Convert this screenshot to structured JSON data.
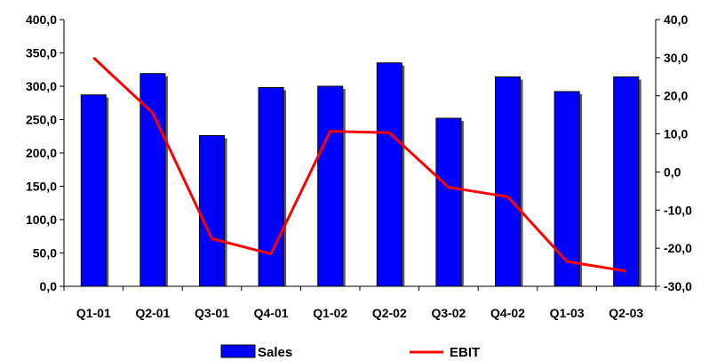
{
  "chart_data": {
    "type": "bar+line",
    "categories": [
      "Q1-01",
      "Q2-01",
      "Q3-01",
      "Q4-01",
      "Q1-02",
      "Q2-02",
      "Q3-02",
      "Q4-02",
      "Q1-03",
      "Q2-03"
    ],
    "series": [
      {
        "name": "Sales",
        "type": "bar",
        "axis": "left",
        "color": "#0000ff",
        "values": [
          287,
          319,
          226,
          298,
          300,
          335,
          252,
          314,
          292,
          314
        ]
      },
      {
        "name": "EBIT",
        "type": "line",
        "axis": "right",
        "color": "#ff0000",
        "values": [
          30.0,
          15.5,
          -17.5,
          -21.5,
          10.7,
          10.3,
          -4.0,
          -6.5,
          -23.5,
          -26.0
        ]
      }
    ],
    "y_left": {
      "min": 0,
      "max": 400,
      "step": 50,
      "tick_labels": [
        "0,0",
        "50,0",
        "100,0",
        "150,0",
        "200,0",
        "250,0",
        "300,0",
        "350,0",
        "400,0"
      ]
    },
    "y_right": {
      "min": -30,
      "max": 40,
      "step": 10,
      "tick_labels": [
        "-30,0",
        "-20,0",
        "-10,0",
        "0,0",
        "10,0",
        "20,0",
        "30,0",
        "40,0"
      ]
    },
    "grid": false,
    "legend": {
      "position": "bottom",
      "items": [
        {
          "label": "Sales",
          "swatch": "bar"
        },
        {
          "label": "EBIT",
          "swatch": "line"
        }
      ]
    }
  }
}
